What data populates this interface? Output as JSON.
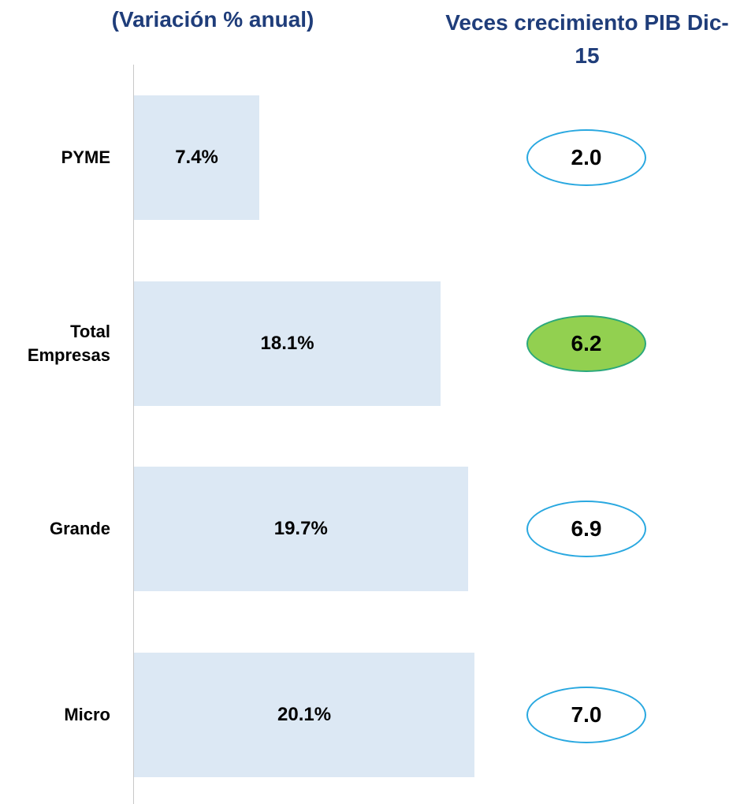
{
  "chart_data": [
    {
      "type": "bar",
      "title": "(Variación % anual)",
      "categories": [
        "PYME",
        "Total Empresas",
        "Grande",
        "Micro"
      ],
      "values": [
        7.4,
        18.1,
        19.7,
        20.1
      ],
      "value_labels": [
        "7.4%",
        "18.1%",
        "19.7%",
        "20.1%"
      ],
      "color": "#dce8f4",
      "orientation": "horizontal"
    },
    {
      "type": "ellipse",
      "title": "Veces crecimiento PIB Dic-15",
      "values": [
        2.0,
        6.2,
        6.9,
        7.0
      ],
      "value_labels": [
        "2.0",
        "6.2",
        "6.9",
        "7.0"
      ],
      "color": "#29a8e0",
      "point_colors": [
        "#ffffff",
        "#92d050",
        "#ffffff",
        "#ffffff"
      ],
      "point_border_colors": [
        "#29a8e0",
        "#2aa87c",
        "#29a8e0",
        "#29a8e0"
      ]
    }
  ]
}
